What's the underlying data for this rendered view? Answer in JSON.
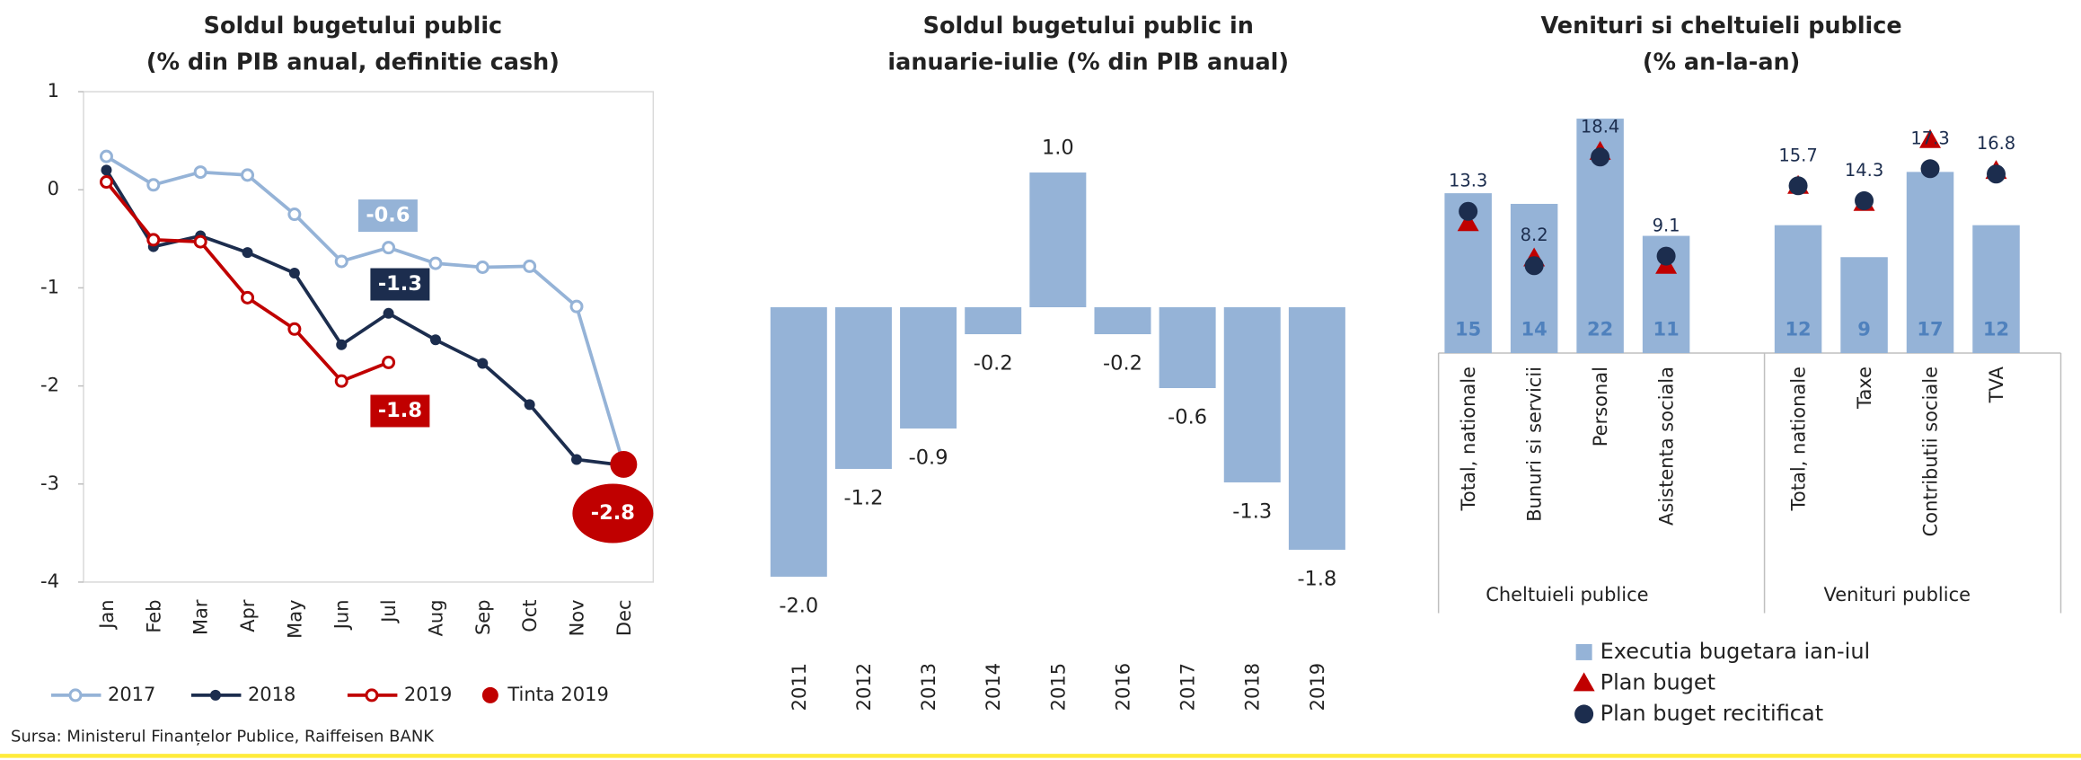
{
  "chart_data": [
    {
      "type": "line",
      "title": [
        "Soldul bugetului public",
        "(% din PIB anual, definitie cash)"
      ],
      "categories": [
        "Jan",
        "Feb",
        "Mar",
        "Apr",
        "May",
        "Jun",
        "Jul",
        "Aug",
        "Sep",
        "Oct",
        "Nov",
        "Dec"
      ],
      "series": [
        {
          "name": "2017",
          "color": "#95b3d7",
          "marker": "hollow",
          "values": [
            0.34,
            0.05,
            0.18,
            0.15,
            -0.25,
            -0.73,
            -0.59,
            -0.75,
            -0.79,
            -0.78,
            -1.19,
            -2.8
          ]
        },
        {
          "name": "2018",
          "color": "#1c2d4e",
          "marker": "filled",
          "values": [
            0.2,
            -0.58,
            -0.47,
            -0.64,
            -0.85,
            -1.58,
            -1.26,
            -1.53,
            -1.77,
            -2.19,
            -2.75,
            -2.81
          ]
        },
        {
          "name": "2019",
          "color": "#c00000",
          "marker": "hollow",
          "values": [
            0.08,
            -0.51,
            -0.53,
            -1.1,
            -1.42,
            -1.95,
            -1.76,
            null,
            null,
            null,
            null,
            null
          ]
        },
        {
          "name": "Tinta 2019",
          "color": "#c00000",
          "marker": "dot",
          "line": false,
          "values": [
            null,
            null,
            null,
            null,
            null,
            null,
            null,
            null,
            null,
            null,
            null,
            -2.8
          ]
        }
      ],
      "annotations": [
        {
          "text": "-0.6",
          "color": "#95b3d7"
        },
        {
          "text": "-1.3",
          "color": "#1c2d4e"
        },
        {
          "text": "-1.8",
          "color": "#c00000"
        },
        {
          "text": "-2.8",
          "color": "#c00000"
        }
      ],
      "ylim": [
        -4,
        1
      ],
      "yticks": [
        -4,
        -3,
        -2,
        -1,
        0,
        1
      ],
      "source": "Sursa: Ministerul Finanțelor Publice, Raiffeisen BANK"
    },
    {
      "type": "bar",
      "title": [
        "Soldul bugetului public in",
        "ianuarie-iulie (% din PIB anual)"
      ],
      "categories": [
        "2011",
        "2012",
        "2013",
        "2014",
        "2015",
        "2016",
        "2017",
        "2018",
        "2019"
      ],
      "values": [
        -2,
        -1.2,
        -0.9,
        -0.2,
        1,
        -0.2,
        -0.6,
        -1.3,
        -1.8
      ],
      "value_labels": [
        "-2.0",
        "-1.2",
        "-0.9",
        "-0.2",
        "1.0",
        "-0.2",
        "-0.6",
        "-1.3",
        "-1.8"
      ],
      "color": "#95b3d7"
    },
    {
      "type": "bar",
      "title": [
        "Venituri si cheltuieli publice",
        "(% an-la-an)"
      ],
      "groups": [
        {
          "label": "Cheltuieli publice",
          "categories": [
            "Total, nationale",
            "Bunuri si servicii",
            "Personal",
            "Asistenta sociala"
          ]
        },
        {
          "label": "Venituri publice",
          "categories": [
            "Total, nationale",
            "Taxe",
            "Contributii sociale",
            "TVA"
          ]
        }
      ],
      "series": [
        {
          "name": "Executia bugetara ian-iul",
          "kind": "bar",
          "color": "#95b3d7",
          "values": [
            15,
            14,
            22,
            11,
            12,
            9,
            17,
            12
          ]
        },
        {
          "name": "Plan buget",
          "kind": "triangle",
          "color": "#c00000",
          "values": [
            12.2,
            8.9,
            18.9,
            8.2,
            15.7,
            14.1,
            20,
            17.1
          ]
        },
        {
          "name": "Plan buget recitificat",
          "kind": "dot",
          "color": "#1c2d4e",
          "values": [
            13.3,
            8.2,
            18.4,
            9.1,
            15.7,
            14.3,
            17.3,
            16.8
          ]
        }
      ]
    }
  ]
}
